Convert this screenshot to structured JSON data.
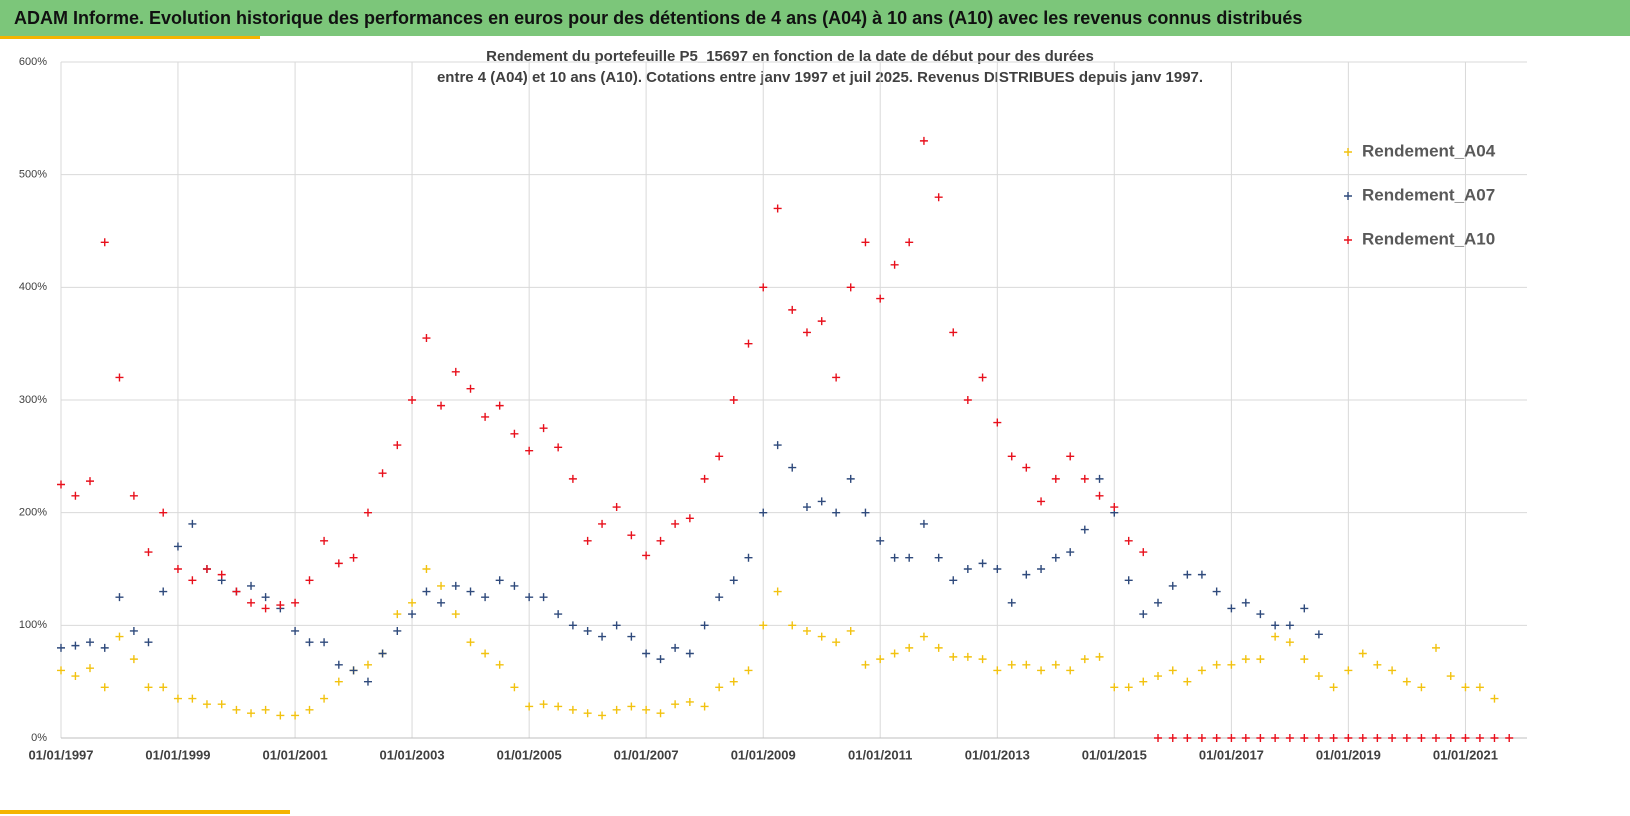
{
  "banner": "ADAM Informe. Evolution historique des performances en euros pour des détentions de 4 ans (A04) à 10 ans (A10) avec les revenus connus distribués",
  "chart_data": {
    "type": "scatter",
    "title": [
      "Rendement du portefeuille P5_15697 en fonction de la date de début pour des durées",
      "entre 4 (A04) et 10 ans (A10). Cotations entre janv 1997 et juil 2025. Revenus DISTRIBUES depuis janv 1997."
    ],
    "x": [
      "01/01/1997",
      "01/04/1997",
      "01/07/1997",
      "01/10/1997",
      "01/01/1998",
      "01/04/1998",
      "01/07/1998",
      "01/10/1998",
      "01/01/1999",
      "01/04/1999",
      "01/07/1999",
      "01/10/1999",
      "01/01/2000",
      "01/04/2000",
      "01/07/2000",
      "01/10/2000",
      "01/01/2001",
      "01/04/2001",
      "01/07/2001",
      "01/10/2001",
      "01/01/2002",
      "01/04/2002",
      "01/07/2002",
      "01/10/2002",
      "01/01/2003",
      "01/04/2003",
      "01/07/2003",
      "01/10/2003",
      "01/01/2004",
      "01/04/2004",
      "01/07/2004",
      "01/10/2004",
      "01/01/2005",
      "01/04/2005",
      "01/07/2005",
      "01/10/2005",
      "01/01/2006",
      "01/04/2006",
      "01/07/2006",
      "01/10/2006",
      "01/01/2007",
      "01/04/2007",
      "01/07/2007",
      "01/10/2007",
      "01/01/2008",
      "01/04/2008",
      "01/07/2008",
      "01/10/2008",
      "01/01/2009",
      "01/04/2009",
      "01/07/2009",
      "01/10/2009",
      "01/01/2010",
      "01/04/2010",
      "01/07/2010",
      "01/10/2010",
      "01/01/2011",
      "01/04/2011",
      "01/07/2011",
      "01/10/2011",
      "01/01/2012",
      "01/04/2012",
      "01/07/2012",
      "01/10/2012",
      "01/01/2013",
      "01/04/2013",
      "01/07/2013",
      "01/10/2013",
      "01/01/2014",
      "01/04/2014",
      "01/07/2014",
      "01/10/2014",
      "01/01/2015",
      "01/04/2015",
      "01/07/2015",
      "01/10/2015",
      "01/01/2016",
      "01/04/2016",
      "01/07/2016",
      "01/10/2016",
      "01/01/2017",
      "01/04/2017",
      "01/07/2017",
      "01/10/2017",
      "01/01/2018",
      "01/04/2018",
      "01/07/2018",
      "01/10/2018",
      "01/01/2019",
      "01/04/2019",
      "01/07/2019",
      "01/10/2019",
      "01/01/2020",
      "01/04/2020",
      "01/07/2020",
      "01/10/2020",
      "01/01/2021",
      "01/04/2021",
      "01/07/2021",
      "01/10/2021"
    ],
    "series": [
      {
        "name": "Rendement_A04",
        "color": "#f2c20f",
        "values": [
          60,
          55,
          62,
          45,
          90,
          70,
          45,
          45,
          35,
          35,
          30,
          30,
          25,
          22,
          25,
          20,
          20,
          25,
          35,
          50,
          60,
          65,
          75,
          110,
          120,
          150,
          135,
          110,
          85,
          75,
          65,
          45,
          28,
          30,
          28,
          25,
          22,
          20,
          25,
          28,
          25,
          22,
          30,
          32,
          28,
          45,
          50,
          60,
          100,
          130,
          100,
          95,
          90,
          85,
          95,
          65,
          70,
          75,
          80,
          90,
          80,
          72,
          72,
          70,
          60,
          65,
          65,
          60,
          65,
          60,
          70,
          72,
          45,
          45,
          50,
          55,
          60,
          50,
          60,
          65,
          65,
          70,
          70,
          90,
          85,
          70,
          55,
          45,
          60,
          75,
          65,
          60,
          50,
          45,
          80,
          55,
          45,
          45,
          35,
          null
        ]
      },
      {
        "name": "Rendement_A07",
        "color": "#2f4a7c",
        "values": [
          80,
          82,
          85,
          80,
          125,
          95,
          85,
          130,
          170,
          190,
          150,
          140,
          130,
          135,
          125,
          115,
          95,
          85,
          85,
          65,
          60,
          50,
          75,
          95,
          110,
          130,
          120,
          135,
          130,
          125,
          140,
          135,
          125,
          125,
          110,
          100,
          95,
          90,
          100,
          90,
          75,
          70,
          80,
          75,
          100,
          125,
          140,
          160,
          200,
          260,
          240,
          205,
          210,
          200,
          230,
          200,
          175,
          160,
          160,
          190,
          160,
          140,
          150,
          155,
          150,
          120,
          145,
          150,
          160,
          165,
          185,
          230,
          200,
          140,
          110,
          120,
          135,
          145,
          145,
          130,
          115,
          120,
          110,
          100,
          100,
          115,
          92,
          null,
          null,
          null,
          null,
          null,
          null,
          null,
          null,
          null,
          null,
          null,
          null,
          null
        ]
      },
      {
        "name": "Rendement_A10",
        "color": "#e8101c",
        "values": [
          225,
          215,
          228,
          440,
          320,
          215,
          165,
          200,
          150,
          140,
          150,
          145,
          130,
          120,
          115,
          118,
          120,
          140,
          175,
          155,
          160,
          200,
          235,
          260,
          300,
          355,
          295,
          325,
          310,
          285,
          295,
          270,
          255,
          275,
          258,
          230,
          175,
          190,
          205,
          180,
          162,
          175,
          190,
          195,
          230,
          250,
          300,
          350,
          400,
          470,
          380,
          360,
          370,
          320,
          400,
          440,
          390,
          420,
          440,
          530,
          480,
          360,
          300,
          320,
          280,
          250,
          240,
          210,
          230,
          250,
          230,
          215,
          205,
          175,
          165,
          0,
          0,
          0,
          0,
          0,
          0,
          0,
          0,
          0,
          0,
          0,
          0,
          0,
          0,
          0,
          0,
          0,
          0,
          0,
          0,
          0,
          0,
          0,
          0,
          0
        ]
      }
    ],
    "xlim": [
      "01/01/1997",
      "20/01/2022"
    ],
    "xticks": [
      "01/01/1997",
      "01/01/1999",
      "01/01/2001",
      "01/01/2003",
      "01/01/2005",
      "01/01/2007",
      "01/01/2009",
      "01/01/2011",
      "01/01/2013",
      "01/01/2015",
      "01/01/2017",
      "01/01/2019",
      "01/01/2021"
    ],
    "ylim": [
      0,
      600
    ],
    "yticks": [
      {
        "value": 0,
        "label": "0%"
      },
      {
        "value": 100,
        "label": "100%"
      },
      {
        "value": 200,
        "label": "200%"
      },
      {
        "value": 300,
        "label": "300%"
      },
      {
        "value": 400,
        "label": "400%"
      },
      {
        "value": 500,
        "label": "500%"
      },
      {
        "value": 600,
        "label": "600%"
      }
    ],
    "grid": true,
    "legend": "upper right"
  }
}
